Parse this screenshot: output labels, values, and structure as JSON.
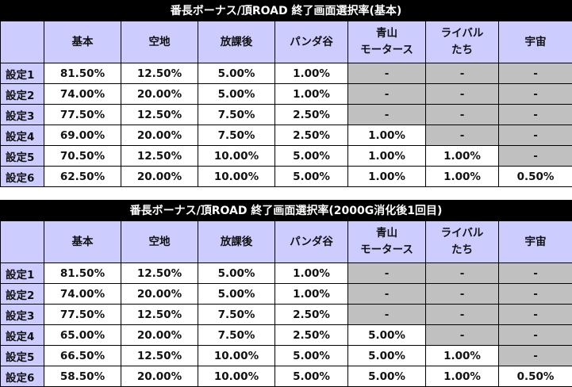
{
  "columns": [
    "基本",
    "空地",
    "放課後",
    "パンダ谷",
    "青山\nモータース",
    "ライバル\nたち",
    "宇宙"
  ],
  "tables": [
    {
      "title": "番長ボーナス/頂ROAD 終了画面選択率(基本)",
      "rows": [
        {
          "label": "設定1",
          "values": [
            "81.50%",
            "12.50%",
            "5.00%",
            "1.00%",
            "-",
            "-",
            "-"
          ]
        },
        {
          "label": "設定2",
          "values": [
            "74.00%",
            "20.00%",
            "5.00%",
            "1.00%",
            "-",
            "-",
            "-"
          ]
        },
        {
          "label": "設定3",
          "values": [
            "77.50%",
            "12.50%",
            "7.50%",
            "2.50%",
            "-",
            "-",
            "-"
          ]
        },
        {
          "label": "設定4",
          "values": [
            "69.00%",
            "20.00%",
            "7.50%",
            "2.50%",
            "1.00%",
            "-",
            "-"
          ]
        },
        {
          "label": "設定5",
          "values": [
            "70.50%",
            "12.50%",
            "10.00%",
            "5.00%",
            "1.00%",
            "1.00%",
            "-"
          ]
        },
        {
          "label": "設定6",
          "values": [
            "62.50%",
            "20.00%",
            "10.00%",
            "5.00%",
            "1.00%",
            "1.00%",
            "0.50%"
          ]
        }
      ]
    },
    {
      "title": "番長ボーナス/頂ROAD 終了画面選択率(2000G消化後1回目)",
      "rows": [
        {
          "label": "設定1",
          "values": [
            "81.50%",
            "12.50%",
            "5.00%",
            "1.00%",
            "-",
            "-",
            "-"
          ]
        },
        {
          "label": "設定2",
          "values": [
            "74.00%",
            "20.00%",
            "5.00%",
            "1.00%",
            "-",
            "-",
            "-"
          ]
        },
        {
          "label": "設定3",
          "values": [
            "77.50%",
            "12.50%",
            "7.50%",
            "2.50%",
            "-",
            "-",
            "-"
          ]
        },
        {
          "label": "設定4",
          "values": [
            "65.00%",
            "20.00%",
            "7.50%",
            "2.50%",
            "5.00%",
            "-",
            "-"
          ]
        },
        {
          "label": "設定5",
          "values": [
            "66.50%",
            "12.50%",
            "10.00%",
            "5.00%",
            "5.00%",
            "1.00%",
            "-"
          ]
        },
        {
          "label": "設定6",
          "values": [
            "58.50%",
            "20.00%",
            "10.00%",
            "5.00%",
            "5.00%",
            "1.00%",
            "0.50%"
          ]
        }
      ]
    }
  ]
}
